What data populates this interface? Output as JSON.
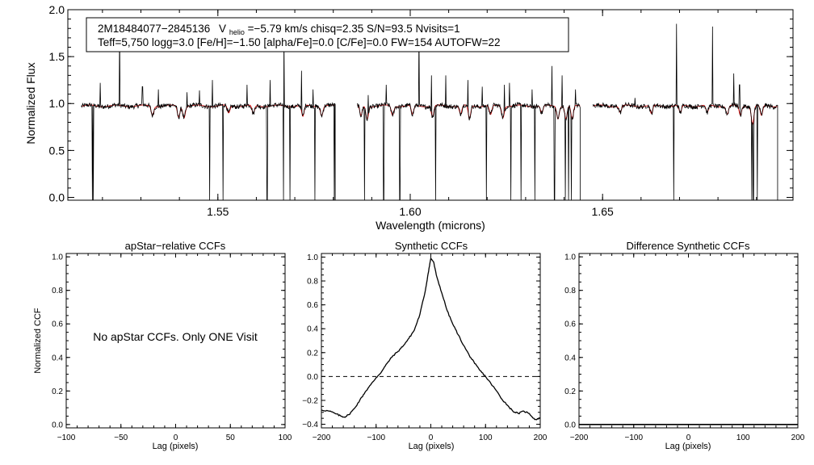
{
  "chart_data": [
    {
      "type": "line",
      "id": "spectrum",
      "title_line1": {
        "star": "2M18484077−2845136",
        "v_label": "V",
        "v_sub": "helio",
        "rest": "=−5.79 km/s  chisq=2.35  S/N=93.5  Nvisits=1"
      },
      "title_line2": "Teff=5,750 logg=3.0 [Fe/H]=−1.50 [alpha/Fe]=0.0 [C/Fe]=0.0 FW=154 AUTOFW=22",
      "xlabel": "Wavelength (microns)",
      "ylabel": "Normalized Flux",
      "xlim": [
        1.511,
        1.6995
      ],
      "ylim": [
        -0.03,
        2.0
      ],
      "xticks": [
        1.55,
        1.6,
        1.65
      ],
      "xtick_labels": [
        "1.55",
        "1.60",
        "1.65"
      ],
      "yticks": [
        0.0,
        0.5,
        1.0,
        1.5,
        2.0
      ],
      "ytick_labels": [
        "0.0",
        "0.5",
        "1.0",
        "1.5",
        "2.0"
      ],
      "chips": [
        [
          1.5145,
          1.5805
        ],
        [
          1.5862,
          1.6442
        ],
        [
          1.6475,
          1.6955
        ]
      ],
      "series": [
        {
          "name": "observed",
          "color": "#000000"
        },
        {
          "name": "model",
          "color": "#dd0000"
        }
      ],
      "drops": [
        1.5174,
        1.5176,
        1.5479,
        1.5513,
        1.5628,
        1.5671,
        1.5687,
        1.5752,
        1.5803,
        1.5881,
        1.5931,
        1.5973,
        1.6066,
        1.6198,
        1.6262,
        1.6288,
        1.6324,
        1.6375,
        1.6403,
        1.6412,
        1.6419,
        1.6685,
        1.6888,
        1.6892,
        1.6902
      ],
      "spikes": [
        [
          1.5194,
          1.22
        ],
        [
          1.5245,
          1.85
        ],
        [
          1.5304,
          1.18
        ],
        [
          1.5345,
          1.15
        ],
        [
          1.542,
          1.12
        ],
        [
          1.5452,
          1.14
        ],
        [
          1.5486,
          1.25
        ],
        [
          1.5576,
          1.2
        ],
        [
          1.5636,
          1.25
        ],
        [
          1.5672,
          1.78
        ],
        [
          1.5717,
          1.35
        ],
        [
          1.5747,
          1.15
        ],
        [
          1.5891,
          1.09
        ],
        [
          1.5938,
          1.2
        ],
        [
          1.6023,
          1.8
        ],
        [
          1.6055,
          1.3
        ],
        [
          1.6092,
          1.3
        ],
        [
          1.615,
          1.25
        ],
        [
          1.6187,
          1.18
        ],
        [
          1.6245,
          1.2
        ],
        [
          1.6258,
          1.22
        ],
        [
          1.6317,
          1.15
        ],
        [
          1.6368,
          1.4
        ],
        [
          1.6395,
          1.3
        ],
        [
          1.643,
          1.15
        ],
        [
          1.6584,
          1.06
        ],
        [
          1.6692,
          1.85
        ],
        [
          1.6786,
          1.82
        ],
        [
          1.6841,
          1.32
        ],
        [
          1.6856,
          1.2
        ],
        [
          1.6902,
          1.25
        ]
      ],
      "absorptions": [
        [
          1.533,
          0.9
        ],
        [
          1.5398,
          0.88
        ],
        [
          1.5412,
          0.88
        ],
        [
          1.5528,
          0.92
        ],
        [
          1.5592,
          0.91
        ],
        [
          1.5721,
          0.88
        ],
        [
          1.577,
          0.9
        ],
        [
          1.5872,
          0.89
        ],
        [
          1.5888,
          0.86
        ],
        [
          1.5954,
          0.9
        ],
        [
          1.6006,
          0.9
        ],
        [
          1.6058,
          0.88
        ],
        [
          1.6131,
          0.91
        ],
        [
          1.6154,
          0.86
        ],
        [
          1.6209,
          0.9
        ],
        [
          1.6241,
          0.88
        ],
        [
          1.6342,
          0.92
        ],
        [
          1.6384,
          0.87
        ],
        [
          1.6405,
          0.86
        ],
        [
          1.6421,
          0.85
        ],
        [
          1.6546,
          0.93
        ],
        [
          1.6627,
          0.91
        ],
        [
          1.6702,
          0.92
        ],
        [
          1.6772,
          0.92
        ],
        [
          1.6824,
          0.91
        ],
        [
          1.6858,
          0.9
        ],
        [
          1.689,
          0.8
        ],
        [
          1.6913,
          0.89
        ]
      ]
    },
    {
      "type": "line",
      "id": "apstar-ccf",
      "title": "apStar−relative CCFs",
      "xlabel": "Lag (pixels)",
      "ylabel": "Normalized CCF",
      "xlim": [
        -100,
        100
      ],
      "ylim": [
        -0.02,
        1.02
      ],
      "xticks": [
        -100,
        -50,
        0,
        50,
        100
      ],
      "xtick_labels": [
        "−100",
        "−50",
        "0",
        "50",
        "100"
      ],
      "yticks": [
        0.0,
        0.2,
        0.4,
        0.6,
        0.8,
        1.0
      ],
      "ytick_labels": [
        "0.0",
        "0.2",
        "0.4",
        "0.6",
        "0.8",
        "1.0"
      ],
      "note": "No apStar CCFs.  Only ONE Visit",
      "series": []
    },
    {
      "type": "line",
      "id": "synthetic-ccf",
      "title": "Synthetic CCFs",
      "xlabel": "Lag (pixels)",
      "ylabel": "",
      "xlim": [
        -200,
        200
      ],
      "ylim": [
        -0.43,
        1.03
      ],
      "xticks": [
        -200,
        -100,
        0,
        100,
        200
      ],
      "xtick_labels": [
        "−200",
        "−100",
        "0",
        "100",
        "200"
      ],
      "yticks": [
        -0.4,
        -0.2,
        0.0,
        0.2,
        0.4,
        0.6,
        0.8,
        1.0
      ],
      "ytick_labels": [
        "−0.4",
        "−0.2",
        "0.0",
        "0.2",
        "0.4",
        "0.6",
        "0.8",
        "1.0"
      ],
      "zero_line": 0.0,
      "series": [
        {
          "name": "ccf",
          "x": [
            -200,
            -185,
            -175,
            -165,
            -158,
            -150,
            -140,
            -130,
            -120,
            -110,
            -100,
            -90,
            -80,
            -70,
            -60,
            -50,
            -40,
            -30,
            -20,
            -10,
            -5,
            0,
            5,
            10,
            20,
            30,
            40,
            50,
            60,
            70,
            80,
            90,
            100,
            110,
            120,
            130,
            140,
            150,
            160,
            170,
            180,
            190,
            200
          ],
          "y": [
            -0.28,
            -0.29,
            -0.31,
            -0.33,
            -0.34,
            -0.32,
            -0.27,
            -0.2,
            -0.13,
            -0.07,
            -0.01,
            0.04,
            0.11,
            0.17,
            0.21,
            0.26,
            0.32,
            0.39,
            0.52,
            0.72,
            0.86,
            0.99,
            0.96,
            0.85,
            0.7,
            0.55,
            0.44,
            0.35,
            0.26,
            0.18,
            0.11,
            0.05,
            0.0,
            -0.06,
            -0.12,
            -0.19,
            -0.24,
            -0.29,
            -0.31,
            -0.29,
            -0.31,
            -0.36,
            -0.35
          ]
        }
      ]
    },
    {
      "type": "line",
      "id": "difference-ccf",
      "title": "Difference Synthetic CCFs",
      "xlabel": "Lag (pixels)",
      "ylabel": "",
      "xlim": [
        -200,
        200
      ],
      "ylim": [
        -0.02,
        1.02
      ],
      "xticks": [
        -200,
        -100,
        0,
        100,
        200
      ],
      "xtick_labels": [
        "−200",
        "−100",
        "0",
        "100",
        "200"
      ],
      "yticks": [
        0.0,
        0.2,
        0.4,
        0.6,
        0.8,
        1.0
      ],
      "ytick_labels": [
        "0.0",
        "0.2",
        "0.4",
        "0.6",
        "0.8",
        "1.0"
      ],
      "series": [
        {
          "name": "difference",
          "x": [
            -200,
            200
          ],
          "y": [
            0.0,
            0.0
          ]
        }
      ]
    }
  ]
}
